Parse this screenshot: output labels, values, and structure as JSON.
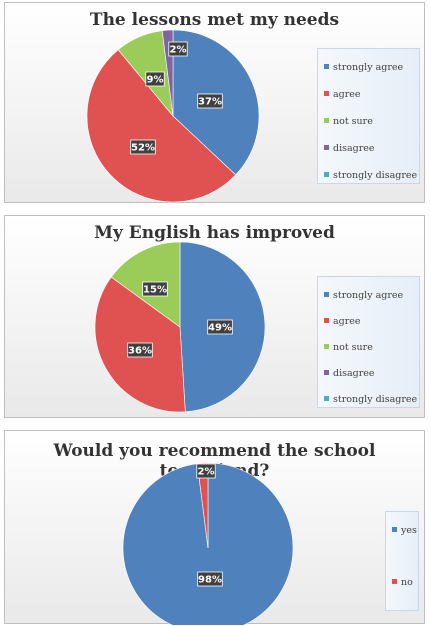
{
  "chart_data": [
    {
      "type": "pie",
      "title": "The lessons met my needs",
      "categories": [
        "strongly agree",
        "agree",
        "not sure",
        "disagree",
        "strongly disagree"
      ],
      "values": [
        37,
        52,
        9,
        2,
        0
      ],
      "data_labels": [
        "37%",
        "52%",
        "9%",
        "2%",
        ""
      ],
      "colors": [
        "#4f81bd",
        "#e05252",
        "#9bcc5a",
        "#8064a2",
        "#4bacc6"
      ],
      "legend_position": "right"
    },
    {
      "type": "pie",
      "title": "My English has improved",
      "categories": [
        "strongly agree",
        "agree",
        "not sure",
        "disagree",
        "strongly disagree"
      ],
      "values": [
        49,
        36,
        15,
        0,
        0
      ],
      "data_labels": [
        "49%",
        "36%",
        "15%",
        "",
        ""
      ],
      "colors": [
        "#4f81bd",
        "#e05252",
        "#9bcc5a",
        "#8064a2",
        "#4bacc6"
      ],
      "legend_position": "right"
    },
    {
      "type": "pie",
      "title": "Would you recommend the school to a friend?",
      "categories": [
        "yes",
        "no"
      ],
      "values": [
        98,
        2
      ],
      "data_labels": [
        "98%",
        "2%"
      ],
      "colors": [
        "#4f81bd",
        "#e05252"
      ],
      "legend_position": "right"
    }
  ]
}
